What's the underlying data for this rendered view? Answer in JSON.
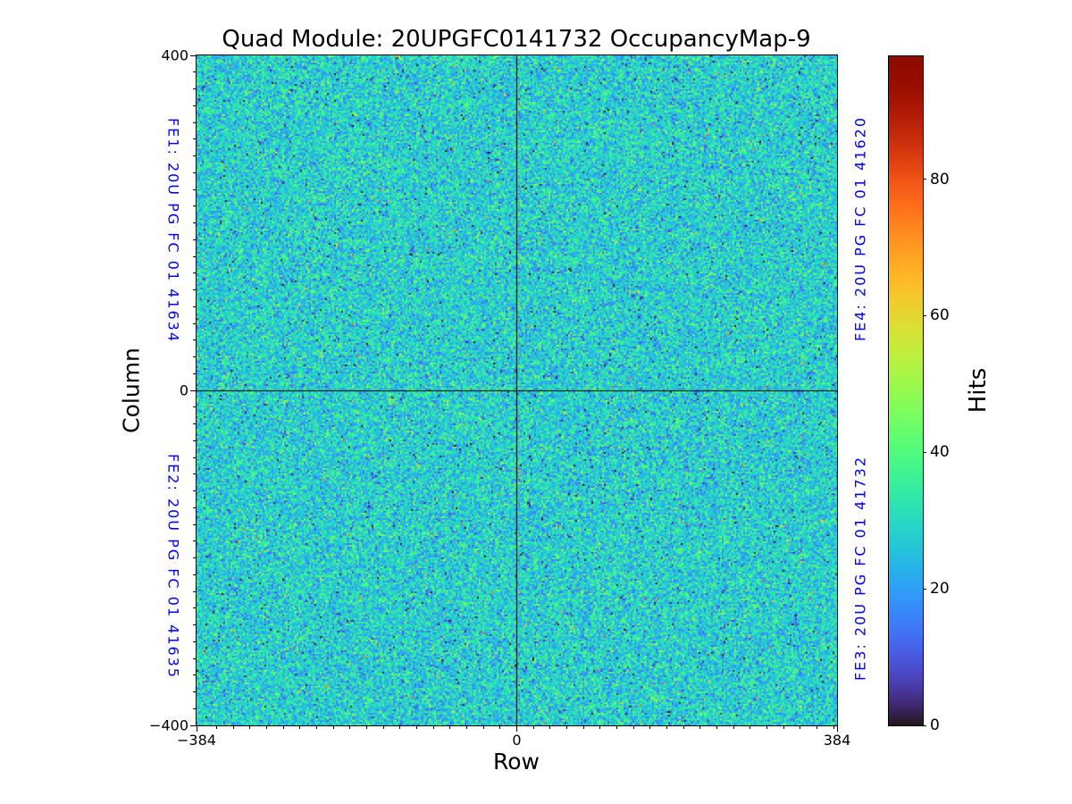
{
  "title": "Quad Module: 20UPGFC0141732 OccupancyMap-9",
  "axes": {
    "xlabel": "Row",
    "ylabel": "Column",
    "x_tick_labels": [
      "−384",
      "0",
      "384"
    ],
    "y_tick_labels": [
      "400",
      "0",
      "−400"
    ]
  },
  "fe_labels": {
    "fe1": "FE1: 20U PG FC 01 41634",
    "fe2": "FE2: 20U PG FC 01 41635",
    "fe3": "FE3: 20U PG FC 01 41732",
    "fe4": "FE4: 20U PG FC 01 41620"
  },
  "colorbar": {
    "label": "Hits",
    "tick_labels": [
      "0",
      "20",
      "40",
      "60",
      "80"
    ]
  },
  "colors": {
    "fe_label_blue": "#0000ff",
    "axis_black": "#000000",
    "background": "#ffffff"
  },
  "chart_data": {
    "type": "heatmap",
    "title": "Quad Module: 20UPGFC0141732 OccupancyMap-9",
    "xlabel": "Row",
    "ylabel": "Column",
    "xlim": [
      -384,
      384
    ],
    "ylim": [
      -400,
      400
    ],
    "x_major_ticks": [
      -384,
      0,
      384
    ],
    "y_major_ticks": [
      400,
      0,
      -400
    ],
    "minor_tick_step": 20,
    "colormap": "turbo",
    "colorbar_label": "Hits",
    "colorbar_ticks": [
      0,
      20,
      40,
      60,
      80
    ],
    "vmin": 0,
    "vmax": 98,
    "grid": false,
    "quadrant_divider_lines": {
      "x": 0,
      "y": 0
    },
    "quadrants": [
      {
        "name": "FE1",
        "label": "FE1: 20U PG FC 01 41634",
        "position": "top-left"
      },
      {
        "name": "FE2",
        "label": "FE2: 20U PG FC 01 41635",
        "position": "bottom-left"
      },
      {
        "name": "FE3",
        "label": "FE3: 20U PG FC 01 41732",
        "position": "bottom-right"
      },
      {
        "name": "FE4",
        "label": "FE4: 20U PG FC 01 41620",
        "position": "top-right"
      }
    ],
    "data_summary": {
      "description": "Pixel occupancy map of 768x800 pixels; uniform random hit noise over all four front-end quadrants, no dead or hot regions",
      "mean_hits": 28,
      "std_hits": 7.5,
      "dominant_color_range": "cyan-teal with blue/green speckle and sparse dark-navy dots"
    }
  }
}
